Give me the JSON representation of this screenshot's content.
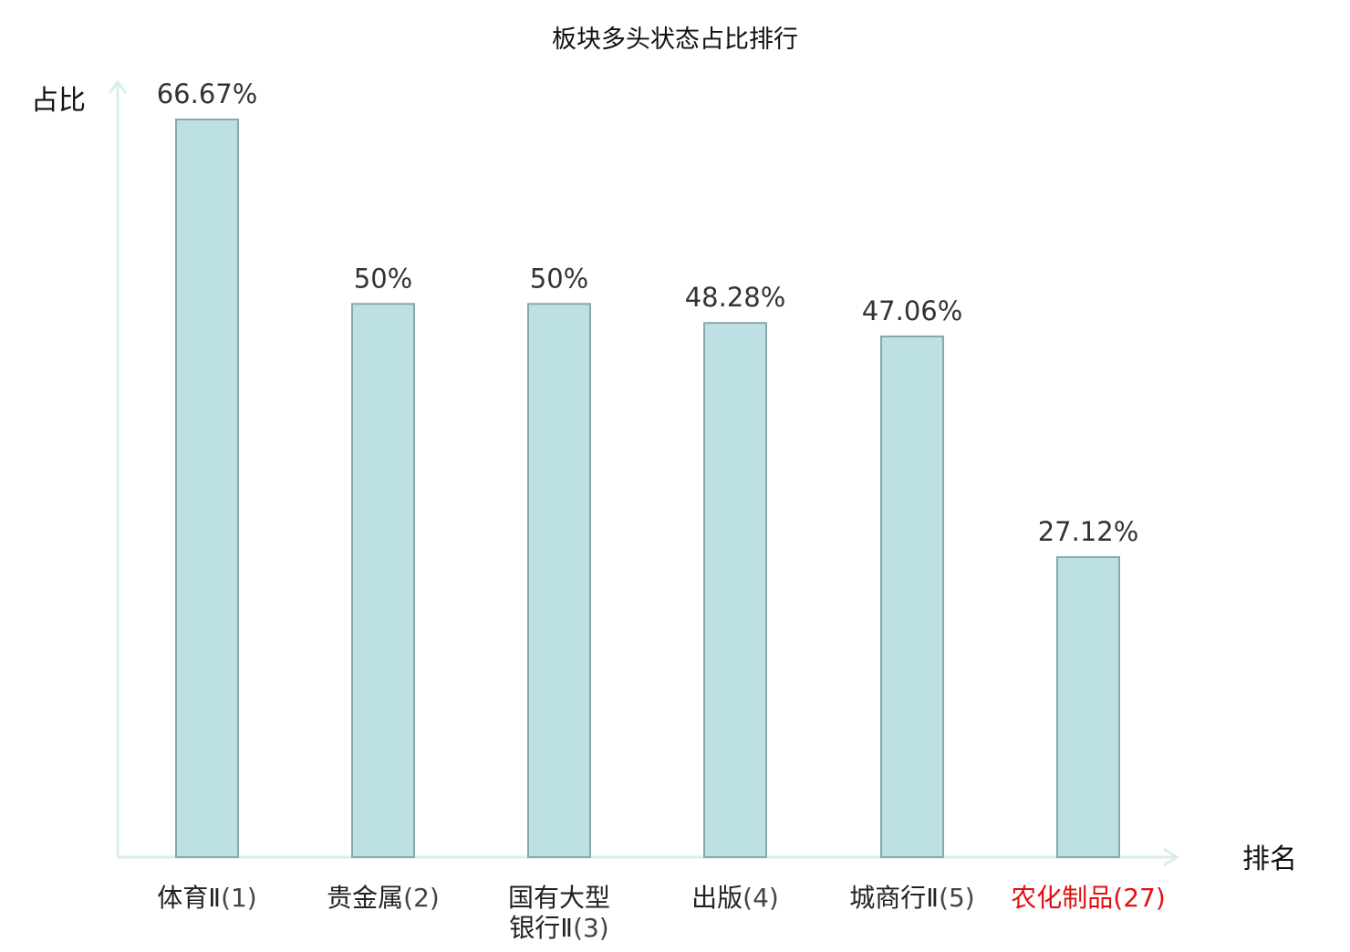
{
  "chart_data": {
    "type": "bar",
    "title": "板块多头状态占比排行",
    "ylabel": "占比",
    "xlabel": "排名",
    "categories": [
      {
        "name": "体育Ⅱ",
        "rank": "(1)",
        "lines": [
          "体育Ⅱ(1)"
        ]
      },
      {
        "name": "贵金属",
        "rank": "(2)",
        "lines": [
          "贵金属(2)"
        ]
      },
      {
        "name": "国有大型银行Ⅱ",
        "rank": "(3)",
        "lines": [
          "国有大型",
          "银行Ⅱ(3)"
        ]
      },
      {
        "name": "出版",
        "rank": "(4)",
        "lines": [
          "出版(4)"
        ]
      },
      {
        "name": "城商行Ⅱ",
        "rank": "(5)",
        "lines": [
          "城商行Ⅱ(5)"
        ]
      },
      {
        "name": "农化制品",
        "rank": "(27)",
        "lines": [
          "农化制品(27)"
        ],
        "highlight": true
      }
    ],
    "values": [
      66.67,
      50,
      50,
      48.28,
      47.06,
      27.12
    ],
    "value_labels": [
      "66.67%",
      "50%",
      "50%",
      "48.28%",
      "47.06%",
      "27.12%"
    ],
    "ylim": [
      0,
      70
    ],
    "grid": false,
    "colors": {
      "bar_fill": "#bce0e3",
      "bar_stroke": "#8aa8ab",
      "axis": "#d9efec",
      "text": "#222222",
      "value_text": "#333333",
      "rank_text": "#444444",
      "highlight_text": "#e01010"
    }
  }
}
